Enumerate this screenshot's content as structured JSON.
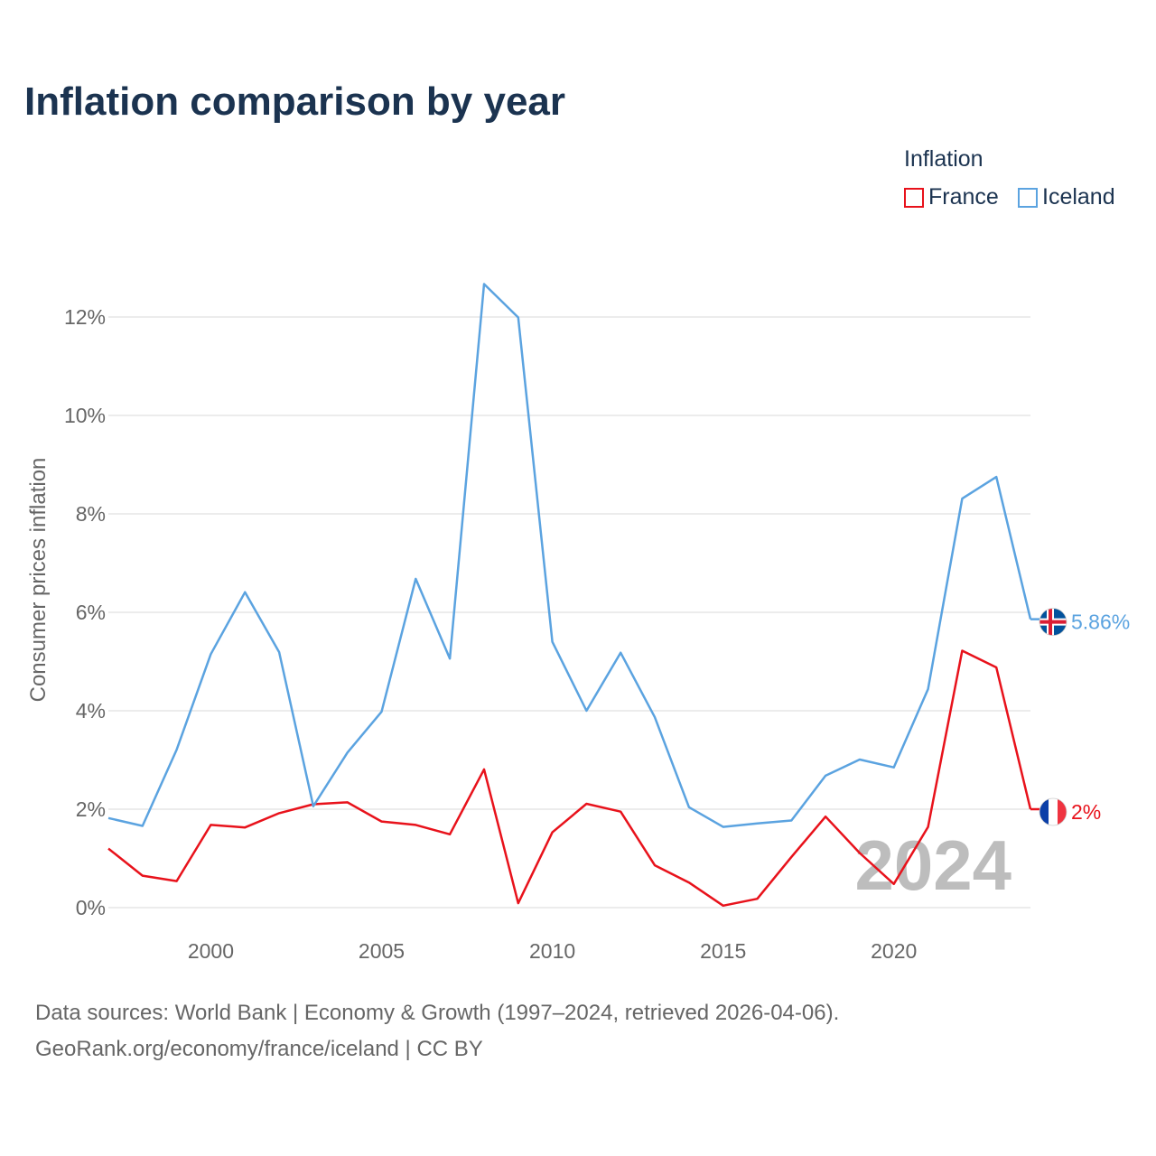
{
  "chart_data": {
    "type": "line",
    "title": "Inflation comparison by year",
    "ylabel": "Consumer prices inflation",
    "xlabel": "",
    "x": [
      1997,
      1998,
      1999,
      2000,
      2001,
      2002,
      2003,
      2004,
      2005,
      2006,
      2007,
      2008,
      2009,
      2010,
      2011,
      2012,
      2013,
      2014,
      2015,
      2016,
      2017,
      2018,
      2019,
      2020,
      2021,
      2022,
      2023,
      2024
    ],
    "xlim": [
      1997,
      2024
    ],
    "ylim": [
      0,
      13
    ],
    "x_ticks": [
      2000,
      2005,
      2010,
      2015,
      2020
    ],
    "x_tick_labels": [
      "2000",
      "2005",
      "2010",
      "2015",
      "2020"
    ],
    "y_ticks": [
      0,
      2,
      4,
      6,
      8,
      10,
      12
    ],
    "y_tick_labels": [
      "0%",
      "2%",
      "4%",
      "6%",
      "8%",
      "10%",
      "12%"
    ],
    "grid": true,
    "legend_title": "Inflation",
    "legend_position": "top-right",
    "watermark_year": "2024",
    "series": [
      {
        "name": "France",
        "color": "#e8121b",
        "end_label": "2%",
        "values": [
          1.2,
          0.65,
          0.54,
          1.68,
          1.63,
          1.92,
          2.1,
          2.14,
          1.75,
          1.68,
          1.49,
          2.81,
          0.09,
          1.53,
          2.11,
          1.95,
          0.86,
          0.51,
          0.04,
          0.18,
          1.03,
          1.85,
          1.11,
          0.48,
          1.64,
          5.22,
          4.88,
          2.0
        ]
      },
      {
        "name": "Iceland",
        "color": "#5ba3e0",
        "end_label": "5.86%",
        "values": [
          1.82,
          1.66,
          3.21,
          5.15,
          6.41,
          5.19,
          2.06,
          3.15,
          3.98,
          6.68,
          5.06,
          12.67,
          11.99,
          5.4,
          4.0,
          5.18,
          3.87,
          2.04,
          1.64,
          1.71,
          1.77,
          2.68,
          3.01,
          2.85,
          4.44,
          8.31,
          8.75,
          5.86
        ]
      }
    ]
  },
  "source": {
    "line1": "Data sources: World Bank | Economy & Growth (1997–2024, retrieved 2026-04-06).",
    "line2": "GeoRank.org/economy/france/iceland | CC BY"
  },
  "colors": {
    "title": "#1b3350",
    "axis_text": "#666666",
    "grid": "#e6e6e6",
    "watermark": "#bdbdbd",
    "flag_france_blue": "#0b3fa8",
    "flag_france_red": "#ef3340",
    "flag_iceland_blue": "#02529c",
    "flag_iceland_red": "#dc1e35"
  }
}
